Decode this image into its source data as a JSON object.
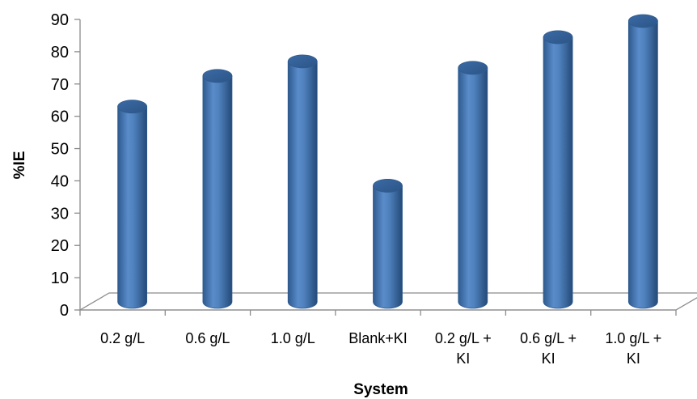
{
  "chart_data": {
    "type": "bar",
    "title": "",
    "xlabel": "System",
    "ylabel": "%IE",
    "ylim": [
      0,
      90
    ],
    "yticks": [
      "0",
      "10",
      "20",
      "30",
      "40",
      "50",
      "60",
      "70",
      "80",
      "90"
    ],
    "categories": [
      [
        "0.2 g/L"
      ],
      [
        "0.6 g/L"
      ],
      [
        "1.0 g/L"
      ],
      [
        "Blank+KI"
      ],
      [
        "0.2 g/L +",
        "KI"
      ],
      [
        "0.6 g/L +",
        "KI"
      ],
      [
        "1.0 g/L +",
        "KI"
      ]
    ],
    "values": [
      62,
      71.5,
      76,
      37.5,
      74,
      83.5,
      88.5
    ],
    "bar_color": "#4F81BD",
    "grid": false,
    "style": "3d-cylinder"
  }
}
